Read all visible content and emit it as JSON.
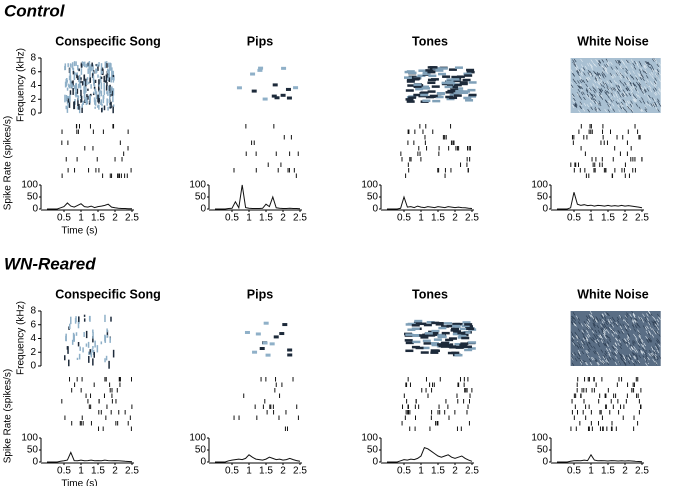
{
  "figure": {
    "sections": [
      {
        "title": "Control",
        "frequency_label": "Frequency (kHz)",
        "rate_label": "Spike Rate (spikes/s)",
        "time_label": "Time (s)",
        "freq_lim": [
          0,
          8
        ],
        "freq_ticks": [
          0,
          2,
          4,
          6,
          8
        ],
        "rate_lim": [
          0,
          100
        ],
        "rate_ticks": [
          0,
          50,
          100
        ],
        "time_lim": [
          0,
          2.5
        ],
        "time_ticks": [
          0.5,
          1,
          1.5,
          2,
          2.5
        ],
        "psth_time": [
          0,
          0.1,
          0.2,
          0.3,
          0.4,
          0.5,
          0.6,
          0.7,
          0.8,
          0.9,
          1.0,
          1.1,
          1.2,
          1.3,
          1.4,
          1.5,
          1.6,
          1.7,
          1.8,
          1.9,
          2.0,
          2.1,
          2.2,
          2.3,
          2.4,
          2.5
        ],
        "panels": [
          {
            "title": "Conspecific Song",
            "psth": [
              0,
              0,
              0,
              0,
              5,
              10,
              25,
              12,
              8,
              15,
              22,
              10,
              8,
              12,
              6,
              10,
              12,
              15,
              20,
              8,
              5,
              3,
              2,
              2,
              1,
              1
            ]
          },
          {
            "title": "Pips",
            "psth": [
              0,
              0,
              0,
              0,
              2,
              3,
              30,
              5,
              100,
              6,
              3,
              2,
              2,
              2,
              3,
              20,
              10,
              50,
              5,
              3,
              2,
              2,
              3,
              2,
              2,
              1
            ]
          },
          {
            "title": "Tones",
            "psth": [
              0,
              0,
              0,
              0,
              3,
              50,
              8,
              10,
              6,
              12,
              8,
              6,
              10,
              8,
              6,
              10,
              8,
              6,
              10,
              8,
              6,
              8,
              6,
              5,
              3,
              2
            ]
          },
          {
            "title": "White Noise",
            "psth": [
              0,
              0,
              0,
              0,
              5,
              70,
              20,
              15,
              18,
              14,
              16,
              12,
              15,
              14,
              12,
              15,
              12,
              14,
              12,
              15,
              12,
              14,
              12,
              10,
              8,
              5
            ]
          }
        ]
      },
      {
        "title": "WN-Reared",
        "frequency_label": "Frequency (kHz)",
        "rate_label": "Spike Rate (spikes/s)",
        "time_label": "Time (s)",
        "freq_lim": [
          0,
          8
        ],
        "freq_ticks": [
          0,
          2,
          4,
          6,
          8
        ],
        "rate_lim": [
          0,
          100
        ],
        "rate_ticks": [
          0,
          50,
          100
        ],
        "time_lim": [
          0,
          2.5
        ],
        "time_ticks": [
          0.5,
          1,
          1.5,
          2,
          2.5
        ],
        "psth_time": [
          0,
          0.1,
          0.2,
          0.3,
          0.4,
          0.5,
          0.6,
          0.7,
          0.8,
          0.9,
          1.0,
          1.1,
          1.2,
          1.3,
          1.4,
          1.5,
          1.6,
          1.7,
          1.8,
          1.9,
          2.0,
          2.1,
          2.2,
          2.3,
          2.4,
          2.5
        ],
        "panels": [
          {
            "title": "Conspecific Song",
            "psth": [
              0,
              0,
              0,
              0,
              3,
              5,
              8,
              40,
              6,
              5,
              8,
              5,
              6,
              8,
              5,
              6,
              5,
              8,
              6,
              5,
              6,
              5,
              4,
              3,
              2,
              1
            ]
          },
          {
            "title": "Pips",
            "psth": [
              0,
              0,
              0,
              0,
              5,
              8,
              10,
              12,
              10,
              15,
              30,
              20,
              12,
              10,
              8,
              12,
              20,
              15,
              10,
              12,
              8,
              10,
              15,
              10,
              6,
              3
            ]
          },
          {
            "title": "Tones",
            "psth": [
              0,
              0,
              0,
              0,
              5,
              10,
              8,
              12,
              10,
              15,
              25,
              60,
              55,
              45,
              35,
              25,
              20,
              25,
              30,
              20,
              15,
              20,
              25,
              15,
              8,
              3
            ]
          },
          {
            "title": "White Noise",
            "psth": [
              0,
              0,
              0,
              0,
              3,
              5,
              6,
              5,
              8,
              6,
              30,
              8,
              5,
              6,
              5,
              4,
              6,
              5,
              4,
              5,
              4,
              5,
              4,
              3,
              2,
              1
            ]
          }
        ]
      }
    ]
  }
}
